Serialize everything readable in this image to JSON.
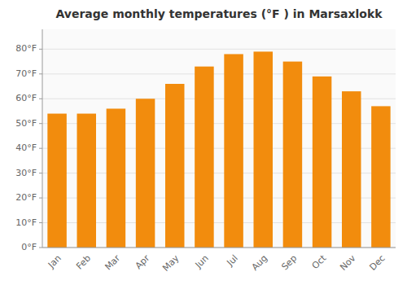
{
  "chart_data": {
    "type": "bar",
    "title": "Average monthly temperatures (°F ) in Marsaxlokk",
    "categories": [
      "Jan",
      "Feb",
      "Mar",
      "Apr",
      "May",
      "Jun",
      "Jul",
      "Aug",
      "Sep",
      "Oct",
      "Nov",
      "Dec"
    ],
    "values": [
      54,
      54,
      56,
      60,
      66,
      73,
      78,
      79,
      75,
      69,
      63,
      57
    ],
    "color": "#F28C0D",
    "ylim": [
      0,
      88
    ],
    "yticks": [
      {
        "value": 0,
        "label": "0°F"
      },
      {
        "value": 10,
        "label": "10°F"
      },
      {
        "value": 20,
        "label": "20°F"
      },
      {
        "value": 30,
        "label": "30°F"
      },
      {
        "value": 40,
        "label": "40°F"
      },
      {
        "value": 50,
        "label": "50°F"
      },
      {
        "value": 60,
        "label": "60°F"
      },
      {
        "value": 70,
        "label": "70°F"
      },
      {
        "value": 80,
        "label": "80°F"
      }
    ],
    "grid": true
  }
}
